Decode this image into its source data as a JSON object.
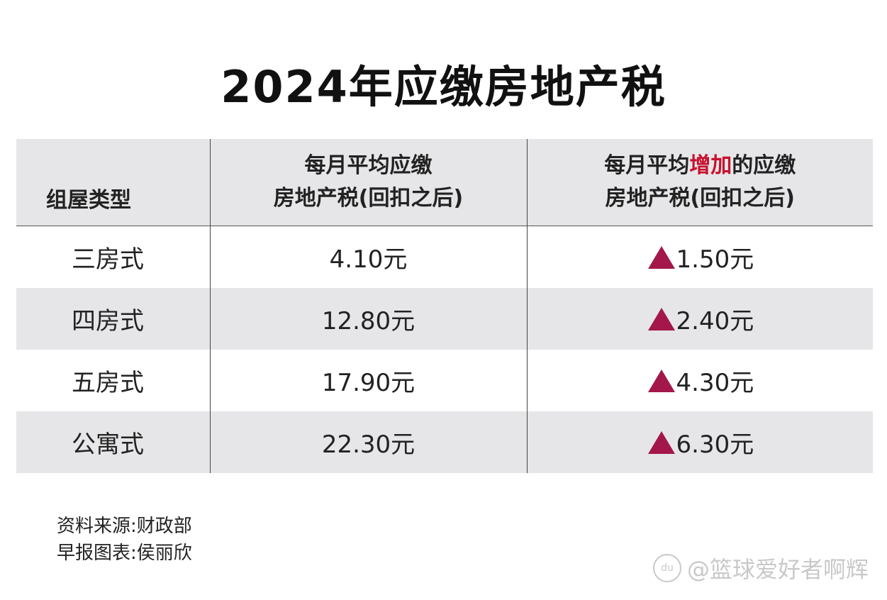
{
  "title": "2024年应缴房地产税",
  "chart_data": {
    "type": "table",
    "title": "2024年应缴房地产税",
    "columns": [
      "组屋类型",
      "每月平均应缴房地产税(回扣之后)",
      "每月平均增加的应缴房地产税(回扣之后)"
    ],
    "header": {
      "col1": "组屋类型",
      "col2_line1": "每月平均应缴",
      "col2_line2": "房地产税(回扣之后)",
      "col3_pre": "每月平均",
      "col3_highlight": "增加",
      "col3_post": "的应缴",
      "col3_line2": "房地产税(回扣之后)"
    },
    "rows": [
      {
        "type": "三房式",
        "avg": "4.10元",
        "increase": "1.50元"
      },
      {
        "type": "四房式",
        "avg": "12.80元",
        "increase": "2.40元"
      },
      {
        "type": "五房式",
        "avg": "17.90元",
        "increase": "4.30元"
      },
      {
        "type": "公寓式",
        "avg": "22.30元",
        "increase": "6.30元"
      }
    ],
    "values_avg": [
      4.1,
      12.8,
      17.9,
      22.3
    ],
    "values_increase": [
      1.5,
      2.4,
      4.3,
      6.3
    ],
    "unit": "元"
  },
  "footer": {
    "source": "资料来源:财政部",
    "credit": "早报图表:侯丽欣"
  },
  "watermark": "@篮球爱好者啊辉",
  "colors": {
    "header_bg": "#e6e6e8",
    "increase_marker": "#a3174a",
    "highlight_text": "#c8102e"
  },
  "icons": {
    "increase_marker": "up-triangle-icon"
  }
}
